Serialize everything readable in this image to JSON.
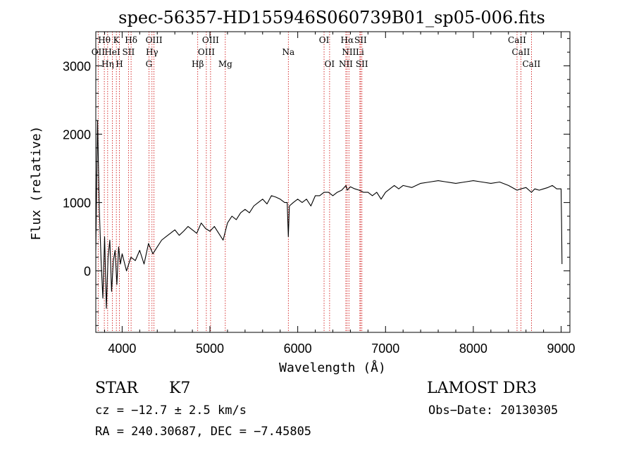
{
  "chart_data": {
    "type": "line",
    "title": "spec-56357-HD155946S060739B01_sp05-006.fits",
    "xlabel": "Wavelength (Å)",
    "ylabel": "Flux (relative)",
    "xlim": [
      3700,
      9100
    ],
    "ylim": [
      -900,
      3500
    ],
    "xticks": [
      4000,
      5000,
      6000,
      7000,
      8000,
      9000
    ],
    "xtick_labels": [
      "4000",
      "5000",
      "6000",
      "7000",
      "8000",
      "9000"
    ],
    "yticks": [
      0,
      1000,
      2000,
      3000
    ],
    "ytick_labels": [
      "0",
      "1000",
      "2000",
      "3000"
    ],
    "line_color": "#000000",
    "marker_color": "#cc0000",
    "series": [
      {
        "name": "flux",
        "x": [
          3700,
          3720,
          3740,
          3760,
          3780,
          3800,
          3820,
          3840,
          3860,
          3880,
          3900,
          3920,
          3940,
          3960,
          3980,
          4000,
          4050,
          4100,
          4150,
          4200,
          4250,
          4300,
          4350,
          4400,
          4450,
          4500,
          4550,
          4600,
          4650,
          4700,
          4750,
          4800,
          4850,
          4900,
          4950,
          5000,
          5050,
          5100,
          5150,
          5200,
          5250,
          5300,
          5350,
          5400,
          5450,
          5500,
          5550,
          5600,
          5650,
          5700,
          5750,
          5800,
          5850,
          5880,
          5893,
          5905,
          5950,
          6000,
          6050,
          6100,
          6150,
          6200,
          6250,
          6300,
          6350,
          6400,
          6450,
          6500,
          6550,
          6563,
          6600,
          6650,
          6700,
          6750,
          6800,
          6850,
          6900,
          6950,
          7000,
          7050,
          7100,
          7150,
          7200,
          7300,
          7400,
          7500,
          7600,
          7700,
          7800,
          7900,
          8000,
          8100,
          8200,
          8300,
          8400,
          8498,
          8542,
          8600,
          8662,
          8700,
          8750,
          8800,
          8850,
          8900,
          8950,
          9000,
          9005,
          9010
        ],
        "values": [
          300,
          2200,
          900,
          150,
          -400,
          500,
          -550,
          200,
          450,
          -300,
          150,
          300,
          -200,
          350,
          100,
          250,
          0,
          200,
          150,
          300,
          100,
          400,
          250,
          350,
          450,
          500,
          550,
          600,
          520,
          580,
          650,
          600,
          550,
          700,
          620,
          580,
          650,
          550,
          450,
          700,
          800,
          750,
          850,
          900,
          850,
          950,
          1000,
          1050,
          980,
          1100,
          1080,
          1050,
          1000,
          1000,
          500,
          950,
          1000,
          1050,
          1000,
          1050,
          950,
          1100,
          1100,
          1150,
          1150,
          1100,
          1150,
          1180,
          1250,
          1180,
          1230,
          1200,
          1180,
          1150,
          1150,
          1100,
          1150,
          1050,
          1150,
          1200,
          1250,
          1200,
          1250,
          1220,
          1280,
          1300,
          1320,
          1300,
          1280,
          1300,
          1320,
          1300,
          1280,
          1300,
          1250,
          1180,
          1200,
          1220,
          1150,
          1200,
          1180,
          1200,
          1220,
          1250,
          1200,
          1200,
          700,
          100
        ]
      }
    ],
    "markers": [
      {
        "label": "Hθ",
        "x": 3797,
        "row": 0
      },
      {
        "label": "K",
        "x": 3934,
        "row": 0
      },
      {
        "label": "Hδ",
        "x": 4102,
        "row": 0
      },
      {
        "label": "OIII",
        "x": 4363,
        "row": 0
      },
      {
        "label": "OIII",
        "x": 5007,
        "row": 0
      },
      {
        "label": "OI",
        "x": 6300,
        "row": 0
      },
      {
        "label": "Hα",
        "x": 6563,
        "row": 0
      },
      {
        "label": "SII",
        "x": 6716,
        "row": 0
      },
      {
        "label": "CaII",
        "x": 8498,
        "row": 0
      },
      {
        "label": "OII",
        "x": 3727,
        "row": 1
      },
      {
        "label": "HeI",
        "x": 3889,
        "row": 1
      },
      {
        "label": "SII",
        "x": 4072,
        "row": 1
      },
      {
        "label": "Hγ",
        "x": 4340,
        "row": 1
      },
      {
        "label": "OIII",
        "x": 4959,
        "row": 1
      },
      {
        "label": "Na",
        "x": 5893,
        "row": 1
      },
      {
        "label": "NII",
        "x": 6583,
        "row": 1
      },
      {
        "label": "Li",
        "x": 6708,
        "row": 1
      },
      {
        "label": "CaII",
        "x": 8542,
        "row": 1
      },
      {
        "label": "Hη",
        "x": 3835,
        "row": 2
      },
      {
        "label": "H",
        "x": 3969,
        "row": 2
      },
      {
        "label": "G",
        "x": 4305,
        "row": 2
      },
      {
        "label": "Hβ",
        "x": 4861,
        "row": 2
      },
      {
        "label": "Mg",
        "x": 5175,
        "row": 2
      },
      {
        "label": "OI",
        "x": 6363,
        "row": 2
      },
      {
        "label": "NII",
        "x": 6548,
        "row": 2
      },
      {
        "label": "SII",
        "x": 6731,
        "row": 2
      },
      {
        "label": "CaII",
        "x": 8662,
        "row": 2
      }
    ]
  },
  "info": {
    "object_class": "STAR",
    "subclass": "K7",
    "survey": "LAMOST DR3",
    "cz": "cz = −12.7 ± 2.5 km/s",
    "obs_date": "Obs−Date: 20130305",
    "coords": "RA = 240.30687, DEC =  −7.45805"
  }
}
